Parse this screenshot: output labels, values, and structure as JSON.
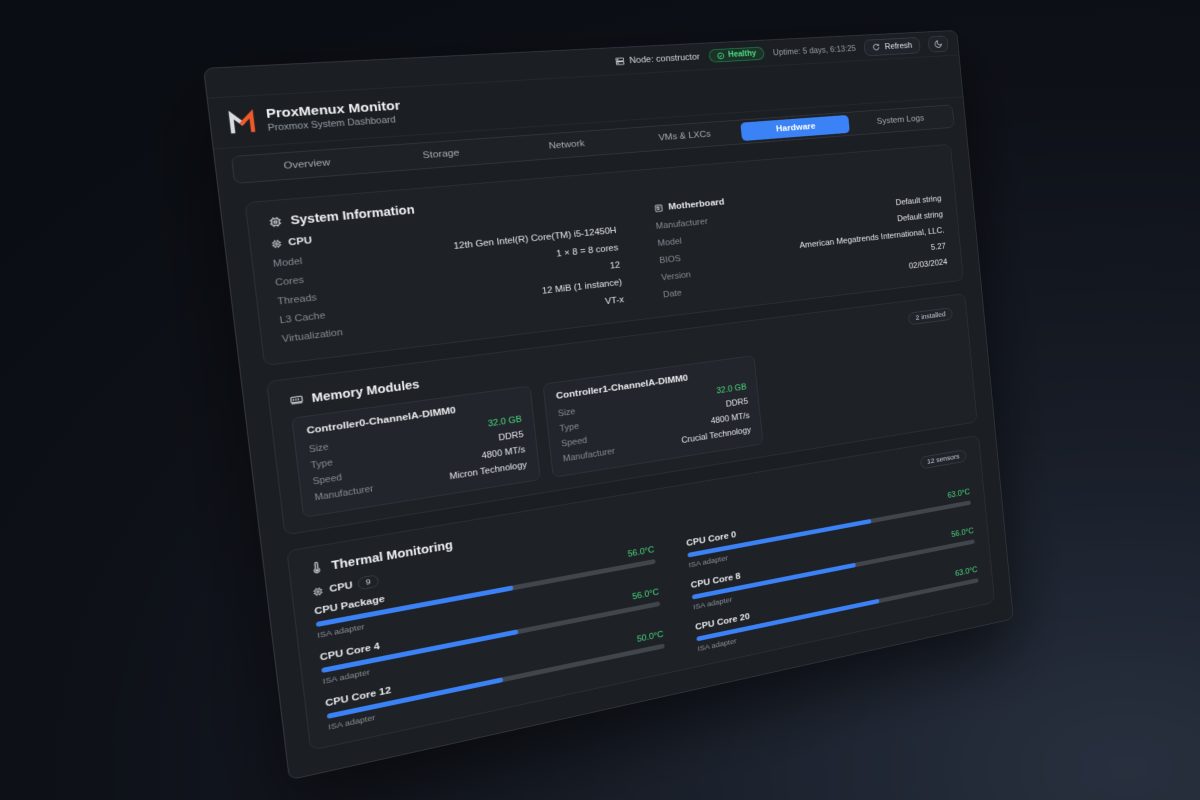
{
  "header": {
    "node_label": "Node: constructor",
    "health_status": "Healthy",
    "uptime": "Uptime: 5 days, 6:13:25",
    "refresh_label": "Refresh"
  },
  "brand": {
    "title": "ProxMenux Monitor",
    "subtitle": "Proxmox System Dashboard"
  },
  "tabs": {
    "items": [
      "Overview",
      "Storage",
      "Network",
      "VMs & LXCs",
      "Hardware",
      "System Logs"
    ],
    "active": "Hardware"
  },
  "system_info": {
    "title": "System Information",
    "cpu": {
      "title": "CPU",
      "rows": [
        {
          "label": "Model",
          "value": "12th Gen Intel(R) Core(TM) i5-12450H"
        },
        {
          "label": "Cores",
          "value": "1 × 8 = 8 cores"
        },
        {
          "label": "Threads",
          "value": "12"
        },
        {
          "label": "L3 Cache",
          "value": "12 MiB (1 instance)"
        },
        {
          "label": "Virtualization",
          "value": "VT-x"
        }
      ]
    },
    "motherboard": {
      "title": "Motherboard",
      "rows": [
        {
          "label": "Manufacturer",
          "value": "Default string"
        },
        {
          "label": "Model",
          "value": "Default string"
        },
        {
          "label": "BIOS",
          "value": "American Megatrends International, LLC."
        },
        {
          "label": "Version",
          "value": "5.27"
        },
        {
          "label": "Date",
          "value": "02/03/2024"
        }
      ]
    }
  },
  "memory": {
    "title": "Memory Modules",
    "badge": "2 installed",
    "modules": [
      {
        "name": "Controller0-ChannelA-DIMM0",
        "rows": [
          {
            "label": "Size",
            "value": "32.0 GB"
          },
          {
            "label": "Type",
            "value": "DDR5"
          },
          {
            "label": "Speed",
            "value": "4800 MT/s"
          },
          {
            "label": "Manufacturer",
            "value": "Micron Technology"
          }
        ]
      },
      {
        "name": "Controller1-ChannelA-DIMM0",
        "rows": [
          {
            "label": "Size",
            "value": "32.0 GB"
          },
          {
            "label": "Type",
            "value": "DDR5"
          },
          {
            "label": "Speed",
            "value": "4800 MT/s"
          },
          {
            "label": "Manufacturer",
            "value": "Crucial Technology"
          }
        ]
      }
    ]
  },
  "thermal": {
    "title": "Thermal Monitoring",
    "badge": "12 sensors",
    "group": {
      "title": "CPU",
      "count": "9"
    },
    "sensors": [
      {
        "name": "CPU Package",
        "adapter": "ISA adapter",
        "temp": "56.0°C",
        "percent": 56
      },
      {
        "name": "CPU Core 0",
        "adapter": "ISA adapter",
        "temp": "63.0°C",
        "percent": 63
      },
      {
        "name": "CPU Core 4",
        "adapter": "ISA adapter",
        "temp": "56.0°C",
        "percent": 56
      },
      {
        "name": "CPU Core 8",
        "adapter": "ISA adapter",
        "temp": "56.0°C",
        "percent": 56
      },
      {
        "name": "CPU Core 12",
        "adapter": "ISA adapter",
        "temp": "50.0°C",
        "percent": 50
      },
      {
        "name": "CPU Core 20",
        "adapter": "ISA adapter",
        "temp": "63.0°C",
        "percent": 63
      }
    ]
  },
  "colors": {
    "accent": "#3b82f6",
    "success": "#4ade80",
    "logo_gray": "#d8dbdf",
    "logo_orange": "#f05a28"
  }
}
